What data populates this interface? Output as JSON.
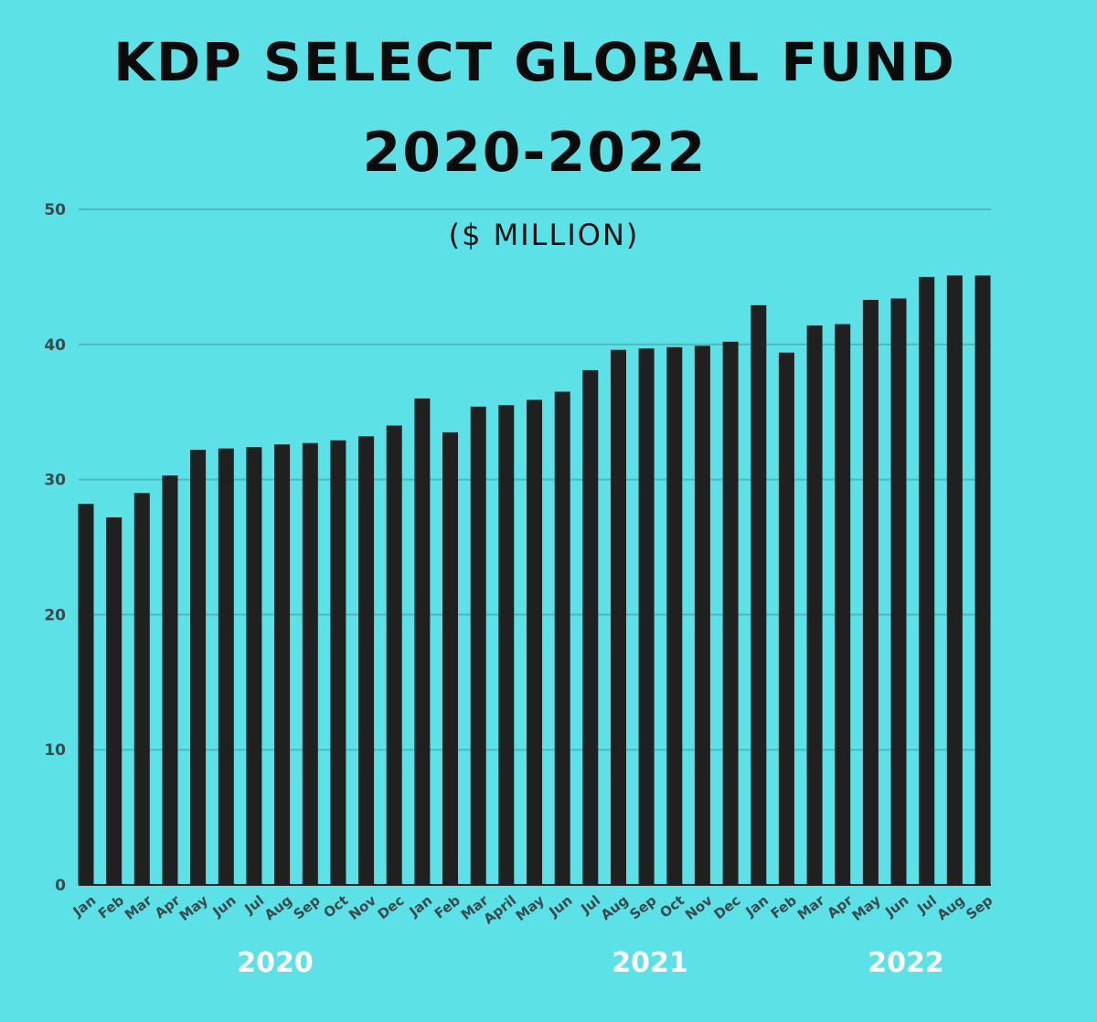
{
  "chart_data": {
    "type": "bar",
    "title": "KDP SELECT GLOBAL FUND",
    "subtitle": "2020-2022",
    "unit_label": "($ MILLION)",
    "xlabel": "",
    "ylabel": "",
    "ylim": [
      0,
      50
    ],
    "yticks": [
      "0",
      "10",
      "20",
      "30",
      "40",
      "50"
    ],
    "grid": true,
    "categories": [
      "Jan",
      "Feb",
      "Mar",
      "Apr",
      "May",
      "Jun",
      "Jul",
      "Aug",
      "Sep",
      "Oct",
      "Nov",
      "Dec",
      "Jan",
      "Feb",
      "Mar",
      "April",
      "May",
      "Jun",
      "Jul",
      "Aug",
      "Sep",
      "Oct",
      "Nov",
      "Dec",
      "Jan",
      "Feb",
      "Mar",
      "Apr",
      "May",
      "Jun",
      "Jul",
      "Aug",
      "Sep"
    ],
    "values": [
      28.2,
      27.2,
      29.0,
      30.3,
      32.2,
      32.3,
      32.4,
      32.6,
      32.7,
      32.9,
      33.2,
      34.0,
      36.0,
      33.5,
      35.4,
      35.5,
      35.9,
      36.5,
      38.1,
      39.6,
      39.7,
      39.8,
      39.9,
      40.2,
      42.9,
      39.4,
      41.4,
      41.5,
      43.3,
      43.4,
      45.0,
      45.1,
      45.1
    ],
    "groups": [
      "2020",
      "2021",
      "2022"
    ],
    "colors": {
      "background": "#5ce1e6",
      "bar": "#202020",
      "gridline": "#4ab9bd",
      "axis": "#1f1f1f",
      "tick_text": "#3a4a4c",
      "group_text": "#ffffff"
    }
  }
}
